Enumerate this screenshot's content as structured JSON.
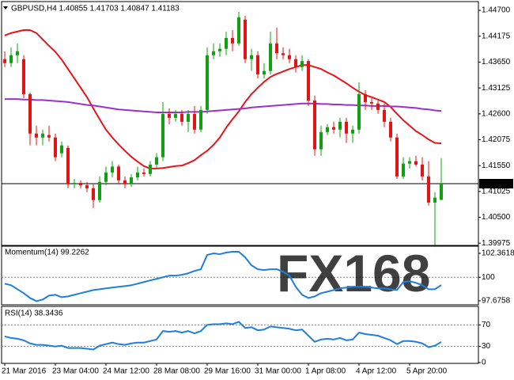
{
  "chart_data": [
    {
      "type": "candlestick",
      "title": "GBPUSD,H4  1.40855 1.41703 1.40847 1.41183",
      "categories": [
        "21 Mar 2016",
        null,
        null,
        null,
        null,
        null,
        null,
        null,
        "23 Mar 04:00",
        null,
        null,
        null,
        null,
        null,
        null,
        null,
        "24 Mar 12:00",
        null,
        null,
        null,
        null,
        null,
        null,
        null,
        "28 Mar 08:00",
        null,
        null,
        null,
        null,
        null,
        null,
        null,
        "29 Mar 16:00",
        null,
        null,
        null,
        null,
        null,
        null,
        null,
        "31 Mar 00:00",
        null,
        null,
        null,
        null,
        null,
        null,
        null,
        "1 Apr 08:00",
        null,
        null,
        null,
        null,
        null,
        null,
        null,
        "4 Apr 12:00",
        null,
        null,
        null,
        null,
        null,
        null,
        null,
        "5 Apr 20:00",
        null,
        null,
        null,
        null,
        null
      ],
      "open": [
        1.4371,
        1.4363,
        1.4379,
        1.4371,
        1.43,
        1.422,
        1.4212,
        1.4217,
        1.4212,
        1.418,
        1.4191,
        1.4117,
        1.412,
        1.4115,
        1.4109,
        1.4085,
        1.4122,
        1.4141,
        1.4153,
        1.4125,
        1.4117,
        1.4131,
        1.4141,
        1.4138,
        1.4157,
        1.4172,
        1.426,
        1.4252,
        1.426,
        1.4244,
        1.426,
        1.4228,
        1.4268,
        1.4379,
        1.4387,
        1.4392,
        1.4414,
        1.4403,
        1.4451,
        1.4371,
        1.4379,
        1.434,
        1.4347,
        1.4403,
        1.4383,
        1.4379,
        1.4371,
        1.4355,
        1.4367,
        1.4287,
        1.4188,
        1.4223,
        1.4233,
        1.4228,
        1.4244,
        1.422,
        1.4228,
        1.43,
        1.4284,
        1.4281,
        1.4268,
        1.4244,
        1.4212,
        1.4133,
        1.4159,
        1.4164,
        1.4157,
        1.4133,
        1.408,
        1.40855
      ],
      "high": [
        1.4387,
        1.4395,
        1.4403,
        1.4379,
        1.4303,
        1.4236,
        1.4228,
        1.4236,
        1.422,
        1.4204,
        1.4196,
        1.4128,
        1.4125,
        1.4122,
        1.4117,
        1.4133,
        1.4153,
        1.4164,
        1.4157,
        1.4133,
        1.4138,
        1.4153,
        1.4149,
        1.4164,
        1.418,
        1.4284,
        1.4271,
        1.4268,
        1.4268,
        1.4268,
        1.4276,
        1.4276,
        1.4395,
        1.4403,
        1.4403,
        1.4427,
        1.443,
        1.4467,
        1.4459,
        1.4392,
        1.4387,
        1.4363,
        1.4427,
        1.4435,
        1.4395,
        1.4392,
        1.4379,
        1.4379,
        1.4371,
        1.4297,
        1.4236,
        1.4239,
        1.4244,
        1.4252,
        1.4252,
        1.4236,
        1.4324,
        1.4308,
        1.4292,
        1.4287,
        1.4281,
        1.4252,
        1.422,
        1.4172,
        1.4172,
        1.4175,
        1.4172,
        1.4164,
        1.4101,
        1.41703
      ],
      "low": [
        1.4355,
        1.4355,
        1.4363,
        1.4292,
        1.4196,
        1.4196,
        1.4196,
        1.4204,
        1.4164,
        1.4172,
        1.4109,
        1.4109,
        1.4109,
        1.4101,
        1.4069,
        1.408,
        1.4115,
        1.4131,
        1.4117,
        1.4109,
        1.4112,
        1.4125,
        1.4133,
        1.4133,
        1.4149,
        1.4164,
        1.4239,
        1.4244,
        1.4236,
        1.4223,
        1.422,
        1.4223,
        1.426,
        1.4371,
        1.4376,
        1.4379,
        1.4387,
        1.4398,
        1.4363,
        1.4347,
        1.4332,
        1.4332,
        1.434,
        1.4371,
        1.4371,
        1.4363,
        1.4344,
        1.4347,
        1.4276,
        1.4175,
        1.4175,
        1.4217,
        1.422,
        1.4212,
        1.4201,
        1.4201,
        1.422,
        1.4268,
        1.4268,
        1.426,
        1.4233,
        1.4204,
        1.4128,
        1.4128,
        1.4149,
        1.4153,
        1.4125,
        1.4074,
        1.3994,
        1.40847
      ],
      "close": [
        1.4363,
        1.4379,
        1.4387,
        1.43,
        1.422,
        1.4212,
        1.422,
        1.4212,
        1.4172,
        1.4196,
        1.4117,
        1.412,
        1.4115,
        1.4109,
        1.4085,
        1.4122,
        1.4141,
        1.4153,
        1.4125,
        1.4117,
        1.4131,
        1.4141,
        1.4138,
        1.4157,
        1.4172,
        1.426,
        1.4252,
        1.426,
        1.4244,
        1.426,
        1.4228,
        1.4268,
        1.4379,
        1.4387,
        1.4392,
        1.4414,
        1.4403,
        1.4456,
        1.4371,
        1.4379,
        1.434,
        1.4347,
        1.4403,
        1.4383,
        1.4379,
        1.4371,
        1.4355,
        1.4367,
        1.4287,
        1.4188,
        1.4223,
        1.4233,
        1.4228,
        1.4244,
        1.422,
        1.4228,
        1.43,
        1.4284,
        1.4281,
        1.4268,
        1.4244,
        1.4212,
        1.4133,
        1.4159,
        1.4164,
        1.4157,
        1.4133,
        1.408,
        1.409,
        1.41183
      ],
      "up_color": "#12a012",
      "down_color": "#e01414",
      "overlays": [
        {
          "color": "#e8141a",
          "values": [
            1.4419,
            1.4424,
            1.4427,
            1.443,
            1.443,
            1.4424,
            1.4411,
            1.4398,
            1.4386,
            1.437,
            1.4351,
            1.4332,
            1.4313,
            1.4294,
            1.4271,
            1.4249,
            1.4228,
            1.4212,
            1.4198,
            1.4185,
            1.4173,
            1.4163,
            1.4154,
            1.4149,
            1.4149,
            1.415,
            1.4152,
            1.4154,
            1.4155,
            1.416,
            1.4166,
            1.4176,
            1.4185,
            1.4197,
            1.4212,
            1.4232,
            1.4249,
            1.4265,
            1.4284,
            1.43,
            1.4313,
            1.4325,
            1.4335,
            1.4341,
            1.4346,
            1.4351,
            1.4355,
            1.4359,
            1.4359,
            1.4355,
            1.4351,
            1.4344,
            1.4338,
            1.433,
            1.4322,
            1.4313,
            1.4305,
            1.4298,
            1.4294,
            1.4289,
            1.4284,
            1.4274,
            1.426,
            1.4247,
            1.4236,
            1.4225,
            1.4217,
            1.4208,
            1.4201,
            1.42
          ]
        },
        {
          "color": "#9a32c8",
          "values": [
            1.429,
            1.429,
            1.429,
            1.4289,
            1.4289,
            1.4288,
            1.4288,
            1.4287,
            1.4286,
            1.4285,
            1.4284,
            1.4282,
            1.428,
            1.4278,
            1.4277,
            1.4275,
            1.4273,
            1.4271,
            1.4269,
            1.4268,
            1.4267,
            1.4266,
            1.4265,
            1.4264,
            1.4263,
            1.4263,
            1.4263,
            1.4263,
            1.4263,
            1.4264,
            1.4264,
            1.4264,
            1.4265,
            1.4266,
            1.4267,
            1.4268,
            1.4269,
            1.427,
            1.4271,
            1.4273,
            1.4274,
            1.4275,
            1.4276,
            1.4277,
            1.4278,
            1.4279,
            1.428,
            1.4281,
            1.4281,
            1.4281,
            1.428,
            1.428,
            1.4279,
            1.4279,
            1.4278,
            1.4278,
            1.4277,
            1.4277,
            1.4276,
            1.4276,
            1.4276,
            1.4275,
            1.4275,
            1.4274,
            1.4273,
            1.4272,
            1.427,
            1.4269,
            1.4267,
            1.4266
          ]
        }
      ],
      "last_price": 1.41183,
      "ylim": [
        1.3993,
        1.4483
      ],
      "yticks": [
        {
          "value": 1.447,
          "label": "1.44700"
        },
        1.44175,
        {
          "value": 1.4365,
          "label": "1.43650"
        },
        1.43125,
        {
          "value": 1.426,
          "label": "1.42600"
        },
        1.42075,
        {
          "value": 1.4155,
          "label": "1.41550"
        },
        1.41025,
        {
          "value": 1.405,
          "label": "1.40500"
        },
        1.39975
      ]
    },
    {
      "type": "line",
      "title": "Momentum(14) 99.2262",
      "color": "#1e7fdc",
      "watermark": "FX168",
      "values": [
        99.37,
        99.21,
        98.82,
        98.43,
        97.95,
        97.64,
        97.8,
        98.19,
        98.27,
        98.03,
        98.11,
        98.27,
        98.43,
        98.58,
        98.74,
        98.82,
        98.9,
        98.98,
        99.06,
        99.13,
        99.21,
        99.37,
        99.53,
        99.69,
        99.84,
        100,
        100.16,
        100.16,
        100.24,
        100.39,
        100.63,
        100.79,
        102.2,
        102.36,
        102.28,
        102.44,
        102.52,
        102.52,
        101.97,
        101.18,
        100.79,
        100.71,
        100.79,
        100.79,
        100.55,
        100.16,
        99.06,
        98.27,
        97.95,
        98.11,
        98.43,
        98.58,
        98.74,
        98.9,
        98.98,
        99.06,
        99.06,
        99.06,
        98.98,
        98.9,
        98.9,
        98.82,
        98.74,
        99.53,
        99.61,
        99.45,
        99.21,
        98.82,
        98.82,
        99.2262
      ],
      "ylim": [
        97.36,
        102.91
      ],
      "yticks": [
        102.3618,
        100,
        97.6758
      ],
      "levels": [
        100
      ]
    },
    {
      "type": "line",
      "title": "RSI(14) 38.3436",
      "color": "#1e7fdc",
      "values": [
        48.6,
        45.7,
        44.3,
        41.4,
        35.7,
        32.9,
        32.9,
        31.4,
        30,
        31.4,
        27.1,
        27.1,
        27.1,
        25.7,
        24.3,
        31.4,
        34.3,
        37.1,
        34.3,
        32.9,
        35.7,
        37.1,
        37.1,
        40,
        42.9,
        58.6,
        57.1,
        58.6,
        55.7,
        58.6,
        54.3,
        58.6,
        70,
        71.4,
        71.4,
        72.9,
        71.4,
        75.7,
        64.3,
        65.7,
        60,
        61.4,
        67.1,
        65.7,
        64.3,
        62.9,
        60,
        61.4,
        50,
        38.6,
        42.9,
        44.3,
        42.9,
        45.7,
        41.4,
        42.9,
        55.7,
        52.9,
        51.4,
        50,
        45.7,
        41.4,
        34.3,
        40,
        40,
        38.6,
        35.7,
        28.6,
        31.4,
        38.3436
      ],
      "ylim": [
        0,
        100
      ],
      "yticks": [
        70,
        30,
        0
      ],
      "levels": [
        70,
        30
      ]
    }
  ]
}
